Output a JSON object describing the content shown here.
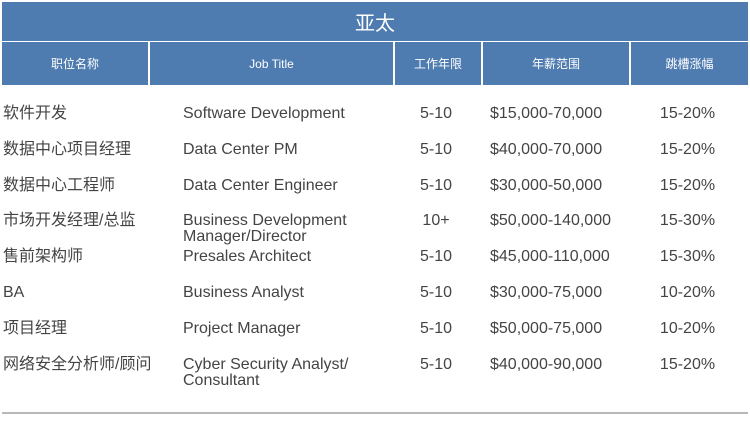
{
  "title": "亚太",
  "headers": [
    "职位名称",
    "Job Title",
    "工作年限",
    "年薪范围",
    "跳槽涨幅"
  ],
  "rows": [
    {
      "cn": "软件开发",
      "en": "Software Development",
      "years": "5-10",
      "salary": "$15,000-70,000",
      "raise": "15-20%"
    },
    {
      "cn": "数据中心项目经理",
      "en": "Data Center PM",
      "years": "5-10",
      "salary": "$40,000-70,000",
      "raise": "15-20%"
    },
    {
      "cn": "数据中心工程师",
      "en": "Data Center Engineer",
      "years": "5-10",
      "salary": "$30,000-50,000",
      "raise": "15-20%"
    },
    {
      "cn": "市场开发经理/总监",
      "en": "Business Development Manager/Director",
      "years": "10+",
      "salary": "$50,000-140,000",
      "raise": "15-30%"
    },
    {
      "cn": "售前架构师",
      "en": "Presales Architect",
      "years": "5-10",
      "salary": "$45,000-110,000",
      "raise": "15-30%"
    },
    {
      "cn": "BA",
      "en": "Business Analyst",
      "years": "5-10",
      "salary": "$30,000-75,000",
      "raise": "10-20%"
    },
    {
      "cn": "项目经理",
      "en": "Project Manager",
      "years": "5-10",
      "salary": "$50,000-75,000",
      "raise": "10-20%"
    },
    {
      "cn": "网络安全分析师/顾问",
      "en": "Cyber Security Analyst/ Consultant",
      "years": "5-10",
      "salary": "$40,000-90,000",
      "raise": "15-20%"
    }
  ],
  "colors": {
    "header_bg": "#4e7bb0",
    "text": "#444444"
  }
}
